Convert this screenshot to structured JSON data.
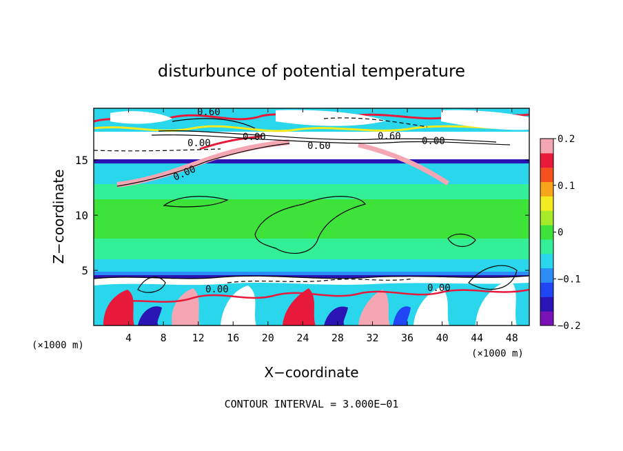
{
  "chart_data": {
    "type": "heatmap",
    "title": "disturbunce of potential temperature",
    "xlabel": "X−coordinate",
    "ylabel": "Z−coordinate",
    "x_unit_left": "(×1000 m)",
    "x_unit_right": "(×1000 m)",
    "x_ticks": [
      "4",
      "8",
      "12",
      "16",
      "20",
      "24",
      "28",
      "32",
      "36",
      "40",
      "44",
      "48"
    ],
    "y_ticks": [
      "5",
      "10",
      "15"
    ],
    "xlim": [
      0,
      50
    ],
    "ylim": [
      0,
      19.7
    ],
    "colorbar": {
      "range": [
        -0.2,
        0.2
      ],
      "tick_labels": [
        "0.2",
        "0.1",
        "0",
        "−0.1",
        "−0.2"
      ],
      "colors": [
        "#7a12b8",
        "#2a14b4",
        "#1f46f2",
        "#2b8cf5",
        "#29d6ec",
        "#33ef96",
        "#3ee33a",
        "#a7ea2a",
        "#f4ea20",
        "#f7a51a",
        "#f4501e",
        "#e8193a",
        "#f4a7b3"
      ]
    },
    "contour_labels": [
      "0.60",
      "0.00",
      "0.00",
      "0.60",
      "0.60",
      "0.00",
      "0.00",
      "0.00",
      "0.00"
    ],
    "bands": [
      {
        "z": [
          19.2,
          19.7
        ],
        "value": "mixed"
      },
      {
        "z": [
          17.0,
          19.2
        ],
        "value": "mixed"
      },
      {
        "z": [
          15.3,
          17.0
        ],
        "value": 0.6
      },
      {
        "z": [
          14.9,
          15.3
        ],
        "value": -0.15
      },
      {
        "z": [
          12.7,
          14.9
        ],
        "value": -0.06
      },
      {
        "z": [
          11.2,
          12.7
        ],
        "value": -0.03
      },
      {
        "z": [
          7.8,
          11.2
        ],
        "value": 0.0
      },
      {
        "z": [
          6.0,
          7.8
        ],
        "value": -0.03
      },
      {
        "z": [
          4.6,
          6.0
        ],
        "value": -0.06
      },
      {
        "z": [
          4.3,
          4.6
        ],
        "value": -0.15
      },
      {
        "z": [
          0,
          4.3
        ],
        "value": "mixed"
      }
    ],
    "grid": false
  },
  "footer": {
    "contour_interval": "CONTOUR INTERVAL = 3.000E−01"
  }
}
